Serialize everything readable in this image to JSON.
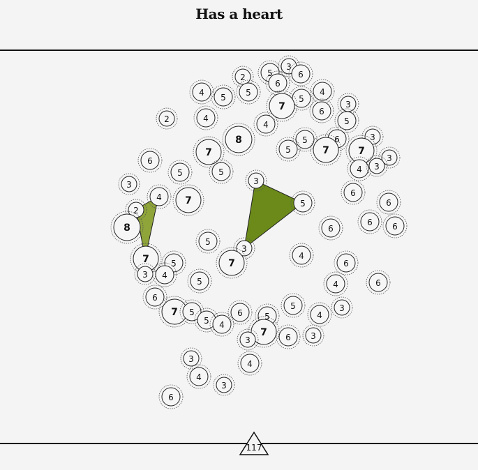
{
  "puzzle": {
    "title": "Has a heart",
    "counter": "117"
  },
  "colors": {
    "background": "#f5f4f4",
    "shape_dark": "#6b8a1a",
    "shape_light": "#8fa53a",
    "stroke": "#222222"
  },
  "nodes": [
    {
      "value": "2"
    },
    {
      "value": "5"
    },
    {
      "value": "3"
    },
    {
      "value": "6"
    },
    {
      "value": "6"
    },
    {
      "value": "5"
    },
    {
      "value": "4"
    },
    {
      "value": "5"
    },
    {
      "value": "5"
    },
    {
      "value": "7"
    },
    {
      "value": "4"
    },
    {
      "value": "3"
    },
    {
      "value": "6"
    },
    {
      "value": "2"
    },
    {
      "value": "4"
    },
    {
      "value": "4"
    },
    {
      "value": "5"
    },
    {
      "value": "8"
    },
    {
      "value": "5"
    },
    {
      "value": "6"
    },
    {
      "value": "7"
    },
    {
      "value": "3"
    },
    {
      "value": "7"
    },
    {
      "value": "3"
    },
    {
      "value": "5"
    },
    {
      "value": "6"
    },
    {
      "value": "7"
    },
    {
      "value": "5"
    },
    {
      "value": "4"
    },
    {
      "value": "3"
    },
    {
      "value": "3"
    },
    {
      "value": "5"
    },
    {
      "value": "3"
    },
    {
      "value": "6"
    },
    {
      "value": "4"
    },
    {
      "value": "5"
    },
    {
      "value": "7"
    },
    {
      "value": "2"
    },
    {
      "value": "6"
    },
    {
      "value": "6"
    },
    {
      "value": "6"
    },
    {
      "value": "8"
    },
    {
      "value": "6"
    },
    {
      "value": "5"
    },
    {
      "value": "3"
    },
    {
      "value": "4"
    },
    {
      "value": "7"
    },
    {
      "value": "5"
    },
    {
      "value": "7"
    },
    {
      "value": "6"
    },
    {
      "value": "3"
    },
    {
      "value": "4"
    },
    {
      "value": "5"
    },
    {
      "value": "4"
    },
    {
      "value": "6"
    },
    {
      "value": "6"
    },
    {
      "value": "7"
    },
    {
      "value": "5"
    },
    {
      "value": "5"
    },
    {
      "value": "6"
    },
    {
      "value": "5"
    },
    {
      "value": "3"
    },
    {
      "value": "5"
    },
    {
      "value": "4"
    },
    {
      "value": "4"
    },
    {
      "value": "7"
    },
    {
      "value": "6"
    },
    {
      "value": "3"
    },
    {
      "value": "3"
    },
    {
      "value": "4"
    },
    {
      "value": "3"
    },
    {
      "value": "4"
    },
    {
      "value": "3"
    },
    {
      "value": "6"
    }
  ]
}
